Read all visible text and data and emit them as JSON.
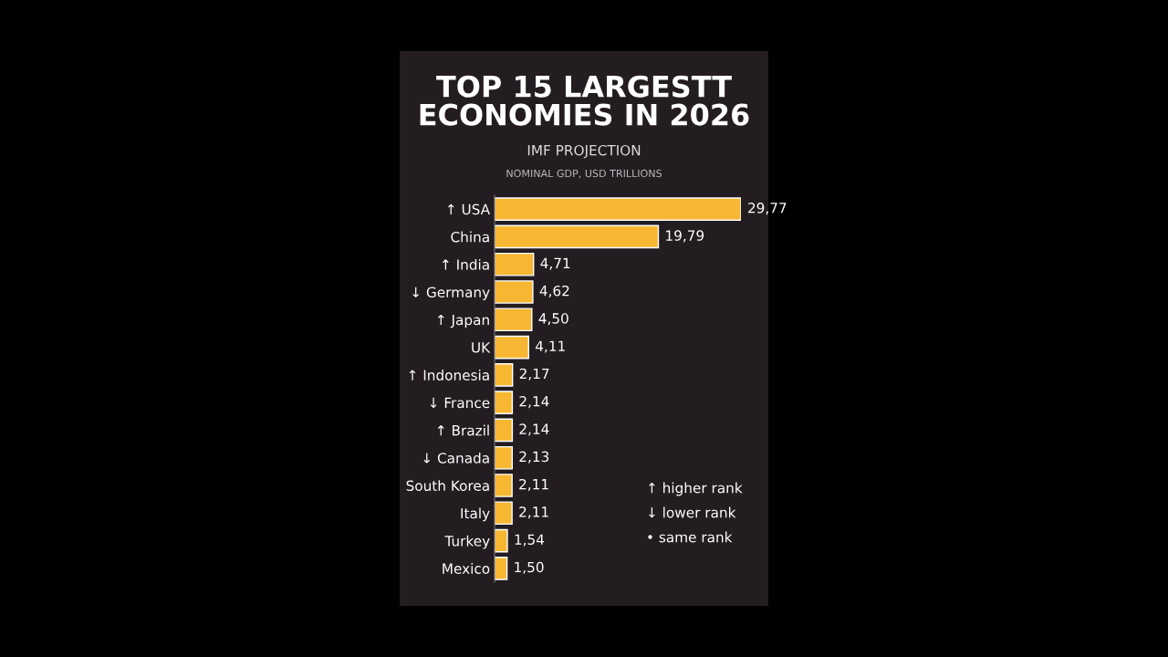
{
  "chart_data": {
    "type": "bar",
    "orientation": "horizontal",
    "title": "TOP 15 LARGESTT\nECONOMIES IN 2026",
    "subtitle": "IMF PROJECTION",
    "xlabel": "NOMINAL GDP, USD TRILLIONS",
    "categories": [
      "↑ USA",
      "China",
      "↑ India",
      "↓ Germany",
      "↑ Japan",
      "UK",
      "↑ Indonesia",
      "↓ France",
      "↑ Brazil",
      "↓ Canada",
      "South Korea",
      "Italy",
      "Turkey",
      "Mexico"
    ],
    "values": [
      29.77,
      19.79,
      4.71,
      4.62,
      4.5,
      4.11,
      2.17,
      2.14,
      2.14,
      2.13,
      2.11,
      2.11,
      1.54,
      1.5
    ],
    "value_labels": [
      "29,77",
      "19,79",
      "4,71",
      "4,62",
      "4,50",
      "4,11",
      "2,17",
      "2,14",
      "2,14",
      "2,13",
      "2,11",
      "2,11",
      "1,54",
      "1,50"
    ],
    "color": "#f7b733",
    "annotations": [
      "↑ higher rank",
      "↓ lower rank",
      "• same rank"
    ],
    "grid": false,
    "legend": false
  }
}
